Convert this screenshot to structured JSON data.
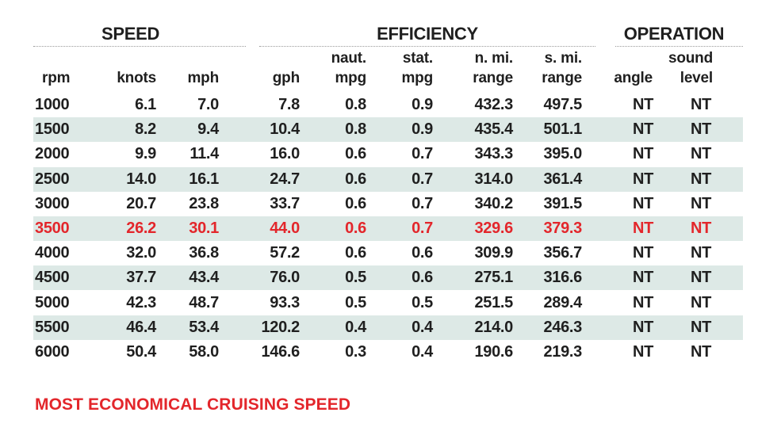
{
  "groups": {
    "speed": "SPEED",
    "efficiency": "EFFICIENCY",
    "operation": "OPERATION"
  },
  "columns": [
    {
      "line1": "",
      "line2": "rpm"
    },
    {
      "line1": "",
      "line2": "knots"
    },
    {
      "line1": "",
      "line2": "mph"
    },
    {
      "line1": "",
      "line2": "gph"
    },
    {
      "line1": "naut.",
      "line2": "mpg"
    },
    {
      "line1": "stat.",
      "line2": "mpg"
    },
    {
      "line1": "n. mi.",
      "line2": "range"
    },
    {
      "line1": "s. mi.",
      "line2": "range"
    },
    {
      "line1": "",
      "line2": "angle"
    },
    {
      "line1": "sound",
      "line2": "level"
    }
  ],
  "rows": [
    [
      "1000",
      "6.1",
      "7.0",
      "7.8",
      "0.8",
      "0.9",
      "432.3",
      "497.5",
      "NT",
      "NT"
    ],
    [
      "1500",
      "8.2",
      "9.4",
      "10.4",
      "0.8",
      "0.9",
      "435.4",
      "501.1",
      "NT",
      "NT"
    ],
    [
      "2000",
      "9.9",
      "11.4",
      "16.0",
      "0.6",
      "0.7",
      "343.3",
      "395.0",
      "NT",
      "NT"
    ],
    [
      "2500",
      "14.0",
      "16.1",
      "24.7",
      "0.6",
      "0.7",
      "314.0",
      "361.4",
      "NT",
      "NT"
    ],
    [
      "3000",
      "20.7",
      "23.8",
      "33.7",
      "0.6",
      "0.7",
      "340.2",
      "391.5",
      "NT",
      "NT"
    ],
    [
      "3500",
      "26.2",
      "30.1",
      "44.0",
      "0.6",
      "0.7",
      "329.6",
      "379.3",
      "NT",
      "NT"
    ],
    [
      "4000",
      "32.0",
      "36.8",
      "57.2",
      "0.6",
      "0.6",
      "309.9",
      "356.7",
      "NT",
      "NT"
    ],
    [
      "4500",
      "37.7",
      "43.4",
      "76.0",
      "0.5",
      "0.6",
      "275.1",
      "316.6",
      "NT",
      "NT"
    ],
    [
      "5000",
      "42.3",
      "48.7",
      "93.3",
      "0.5",
      "0.5",
      "251.5",
      "289.4",
      "NT",
      "NT"
    ],
    [
      "5500",
      "46.4",
      "53.4",
      "120.2",
      "0.4",
      "0.4",
      "214.0",
      "246.3",
      "NT",
      "NT"
    ],
    [
      "6000",
      "50.4",
      "58.0",
      "146.6",
      "0.3",
      "0.4",
      "190.6",
      "219.3",
      "NT",
      "NT"
    ]
  ],
  "highlight_rpm": "3500",
  "footnote": "MOST ECONOMICAL CRUISING SPEED",
  "colors": {
    "highlight": "#e3262b",
    "band": "#dde9e6",
    "text": "#1f1f1f"
  }
}
